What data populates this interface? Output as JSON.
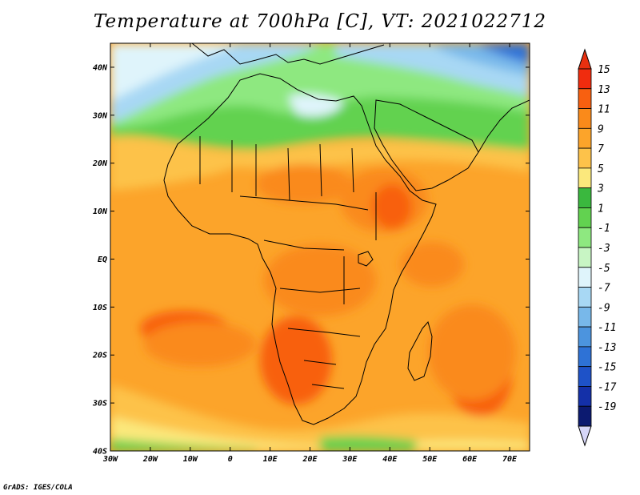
{
  "title": "Temperature at 700hPa [C], VT: 2021022712",
  "credit": "GrADS: IGES/COLA",
  "map": {
    "lon_range": [
      -30,
      75
    ],
    "lat_range": [
      -40,
      45
    ],
    "lon_ticks": [
      {
        "v": -30,
        "label": "30W"
      },
      {
        "v": -20,
        "label": "20W"
      },
      {
        "v": -10,
        "label": "10W"
      },
      {
        "v": 0,
        "label": "0"
      },
      {
        "v": 10,
        "label": "10E"
      },
      {
        "v": 20,
        "label": "20E"
      },
      {
        "v": 30,
        "label": "30E"
      },
      {
        "v": 40,
        "label": "40E"
      },
      {
        "v": 50,
        "label": "50E"
      },
      {
        "v": 60,
        "label": "60E"
      },
      {
        "v": 70,
        "label": "70E"
      }
    ],
    "lat_ticks": [
      {
        "v": 40,
        "label": "40N"
      },
      {
        "v": 30,
        "label": "30N"
      },
      {
        "v": 20,
        "label": "20N"
      },
      {
        "v": 10,
        "label": "10N"
      },
      {
        "v": 0,
        "label": "EQ"
      },
      {
        "v": -10,
        "label": "10S"
      },
      {
        "v": -20,
        "label": "20S"
      },
      {
        "v": -30,
        "label": "30S"
      },
      {
        "v": -40,
        "label": "40S"
      }
    ]
  },
  "colorbar": {
    "levels": [
      "15",
      "13",
      "11",
      "9",
      "7",
      "5",
      "3",
      "1",
      "-1",
      "-3",
      "-5",
      "-7",
      "-9",
      "-11",
      "-13",
      "-15",
      "-17",
      "-19"
    ],
    "colors": [
      "#f02c0e",
      "#f86010",
      "#fa8a1a",
      "#fca42a",
      "#fdc24a",
      "#fbe87c",
      "#3ab83e",
      "#62d250",
      "#8ee880",
      "#c8f5c4",
      "#dff4fb",
      "#a8d8f4",
      "#78b8ea",
      "#4c94de",
      "#2e72d6",
      "#1e52c8",
      "#1430a8",
      "#0c1a70"
    ],
    "top_arrow_color": "#e83010",
    "bottom_arrow_color": "#d6d6f8"
  }
}
